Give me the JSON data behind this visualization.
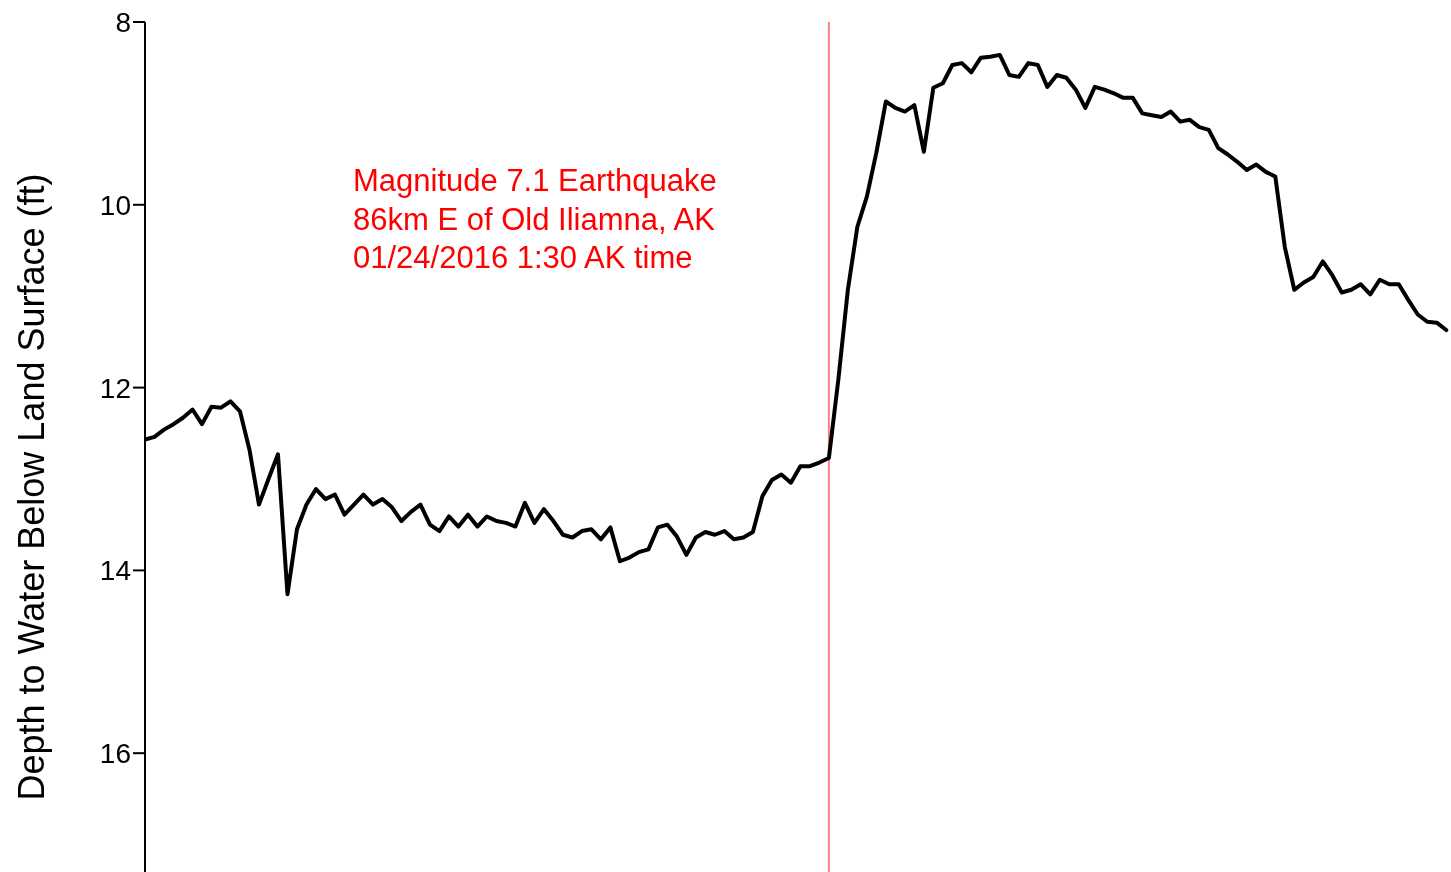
{
  "chart_data": {
    "type": "line",
    "ylabel": "Depth to Water Below Land Surface (ft)",
    "categories": [
      null,
      null,
      null,
      null,
      null,
      null,
      null,
      null,
      null,
      null,
      null,
      null,
      null,
      null,
      null,
      null,
      null,
      null,
      null,
      null,
      null,
      null,
      null,
      null,
      null,
      null,
      null,
      null,
      null,
      null,
      null,
      null,
      null,
      null,
      null,
      null,
      null,
      null,
      null,
      null,
      null,
      null,
      null,
      null,
      null,
      null,
      null,
      null,
      null,
      null,
      null,
      null,
      null,
      null,
      null,
      null,
      null,
      null,
      null,
      null,
      null,
      null,
      null,
      null,
      null,
      null,
      null,
      null,
      null,
      null,
      null,
      null,
      null,
      null,
      null,
      null,
      null,
      null,
      null,
      null,
      null,
      null,
      null,
      null,
      null,
      null,
      null,
      null,
      null,
      null,
      null,
      null,
      null,
      null,
      null,
      null,
      null,
      null,
      null,
      null,
      null,
      null,
      null,
      null,
      null,
      null,
      null,
      null,
      null,
      null,
      null,
      null,
      null,
      null,
      null,
      null,
      null,
      null,
      null,
      null,
      null,
      null,
      null,
      null,
      null,
      null,
      null,
      null,
      null,
      null,
      null,
      null,
      null,
      null,
      null,
      null,
      null,
      null
    ],
    "series": [
      {
        "color": "#000000",
        "values": [
          12.57,
          12.54,
          12.46,
          12.4,
          12.33,
          12.24,
          12.4,
          12.21,
          12.22,
          12.15,
          12.26,
          12.68,
          13.28,
          13.0,
          12.73,
          14.26,
          13.55,
          13.28,
          13.11,
          13.22,
          13.17,
          13.39,
          13.28,
          13.17,
          13.28,
          13.22,
          13.31,
          13.46,
          13.36,
          13.28,
          13.5,
          13.57,
          13.41,
          13.52,
          13.39,
          13.52,
          13.41,
          13.46,
          13.48,
          13.52,
          13.26,
          13.48,
          13.33,
          13.46,
          13.61,
          13.64,
          13.57,
          13.55,
          13.66,
          13.53,
          13.9,
          13.86,
          13.8,
          13.77,
          13.53,
          13.5,
          13.63,
          13.83,
          13.64,
          13.58,
          13.61,
          13.57,
          13.66,
          13.64,
          13.58,
          13.19,
          13.01,
          12.95,
          13.04,
          12.86,
          12.86,
          12.82,
          12.77,
          11.91,
          10.93,
          10.24,
          9.91,
          9.43,
          8.87,
          8.94,
          8.98,
          8.91,
          9.42,
          8.72,
          8.67,
          8.47,
          8.45,
          8.55,
          8.39,
          8.38,
          8.36,
          8.58,
          8.6,
          8.45,
          8.47,
          8.71,
          8.58,
          8.61,
          8.74,
          8.94,
          8.71,
          8.74,
          8.78,
          8.83,
          8.83,
          9.0,
          9.02,
          9.04,
          8.98,
          9.09,
          9.07,
          9.15,
          9.18,
          9.38,
          9.45,
          9.53,
          9.62,
          9.56,
          9.64,
          9.69,
          10.46,
          10.93,
          10.85,
          10.79,
          10.62,
          10.77,
          10.96,
          10.93,
          10.87,
          10.98,
          10.82,
          10.87,
          10.87,
          11.04,
          11.2,
          11.28,
          11.29,
          11.37
        ]
      }
    ],
    "ylim": [
      17.3,
      8
    ],
    "yticks": [
      8,
      10,
      12,
      14,
      16
    ],
    "tick_labels": "y",
    "marker": "none",
    "line_style": "solid",
    "annotations": [
      "Magnitude 7.1 Earthquake\n86km E of Old Iliamna, AK\n01/24/2016 1:30 AK time"
    ]
  }
}
